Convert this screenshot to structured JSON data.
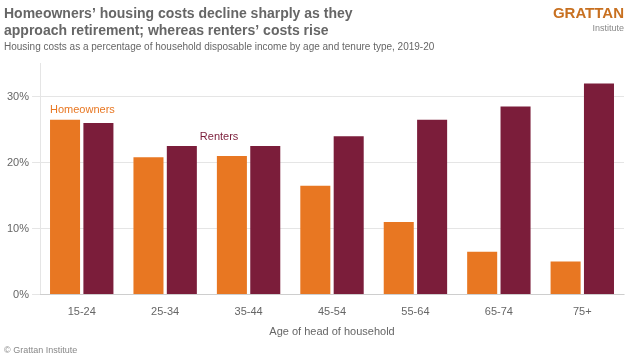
{
  "chart_data": {
    "type": "bar",
    "title": [
      "Homeowners’ housing costs decline sharply as they",
      "approach retirement; whereas renters’ costs rise"
    ],
    "subtitle": "Housing costs as a percentage of household disposable income by age and tenure type, 2019-20",
    "xlabel": "Age of head of household",
    "categories": [
      "15-24",
      "25-34",
      "35-44",
      "45-54",
      "55-64",
      "65-74",
      "75+"
    ],
    "series": [
      {
        "name": "Homeowners",
        "color": "#E87722",
        "values": [
          26.5,
          20.8,
          21.0,
          16.5,
          11.0,
          6.5,
          5.0
        ]
      },
      {
        "name": "Renters",
        "color": "#7B1D3A",
        "values": [
          26.0,
          22.5,
          22.5,
          24.0,
          26.5,
          28.5,
          32.0
        ]
      }
    ],
    "ylim": [
      0,
      35
    ],
    "yticks": [
      {
        "value": 0,
        "label": "0%"
      },
      {
        "value": 10,
        "label": "10%"
      },
      {
        "value": 20,
        "label": "20%"
      },
      {
        "value": 30,
        "label": "30%"
      }
    ],
    "grid": true,
    "annotations": [
      {
        "text": "GRATTAN",
        "color": "#C87020"
      },
      {
        "text": "Institute"
      },
      {
        "text": "© Grattan Institute"
      }
    ]
  }
}
